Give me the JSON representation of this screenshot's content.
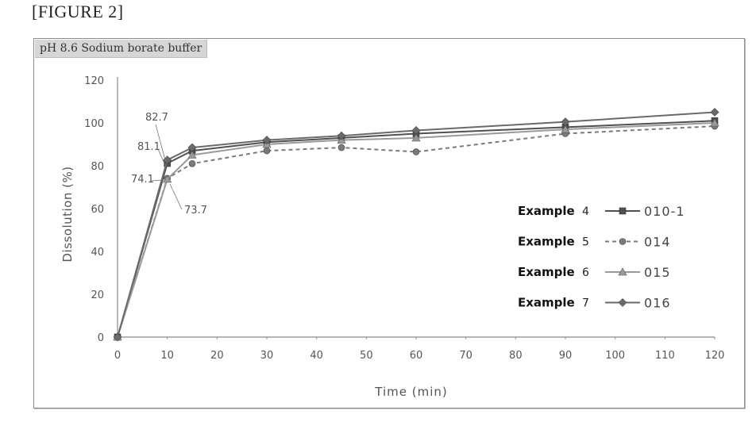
{
  "figure_label": "[FIGURE 2]",
  "chart_data": {
    "type": "line",
    "title": "",
    "subtitle": "pH 8.6 Sodium borate buffer",
    "xlabel": "Time (min)",
    "ylabel": "Dissolution (%)",
    "xlim": [
      0,
      120
    ],
    "ylim": [
      0,
      120
    ],
    "xticks": [
      0,
      10,
      20,
      30,
      40,
      50,
      60,
      70,
      80,
      90,
      100,
      110,
      120
    ],
    "yticks": [
      0,
      20,
      40,
      60,
      80,
      100,
      120
    ],
    "grid": false,
    "legend_position": "right",
    "series": [
      {
        "legend_label": "Example",
        "legend_number": "4",
        "name": "010-1",
        "marker": "square",
        "dash": "solid",
        "color": "#505050",
        "x": [
          0,
          10,
          15,
          30,
          45,
          60,
          90,
          120
        ],
        "y": [
          0,
          81.1,
          87,
          91,
          93,
          95,
          98,
          101
        ]
      },
      {
        "legend_label": "Example",
        "legend_number": "5",
        "name": "014",
        "marker": "circle",
        "dash": "dashed",
        "color": "#7a7a7a",
        "x": [
          0,
          10,
          15,
          30,
          45,
          60,
          90,
          120
        ],
        "y": [
          0,
          74.1,
          81,
          87,
          88.5,
          86.5,
          95,
          98.5
        ]
      },
      {
        "legend_label": "Example",
        "legend_number": "6",
        "name": "015",
        "marker": "triangle",
        "dash": "solid",
        "color": "#9a9a9a",
        "x": [
          0,
          10,
          15,
          30,
          45,
          60,
          90,
          120
        ],
        "y": [
          0,
          73.7,
          85,
          90,
          92,
          93,
          97,
          100
        ]
      },
      {
        "legend_label": "Example",
        "legend_number": "7",
        "name": "016",
        "marker": "diamond",
        "dash": "solid",
        "color": "#6a6a6a",
        "x": [
          0,
          10,
          15,
          30,
          45,
          60,
          90,
          120
        ],
        "y": [
          0,
          82.7,
          88.5,
          92,
          94,
          96.5,
          100.5,
          105
        ]
      }
    ],
    "annotations": [
      {
        "text": "82.7",
        "x": 10,
        "y": 82.7
      },
      {
        "text": "81.1",
        "x": 10,
        "y": 81.1
      },
      {
        "text": "74.1",
        "x": 10,
        "y": 74.1
      },
      {
        "text": "73.7",
        "x": 10,
        "y": 73.7
      }
    ]
  }
}
